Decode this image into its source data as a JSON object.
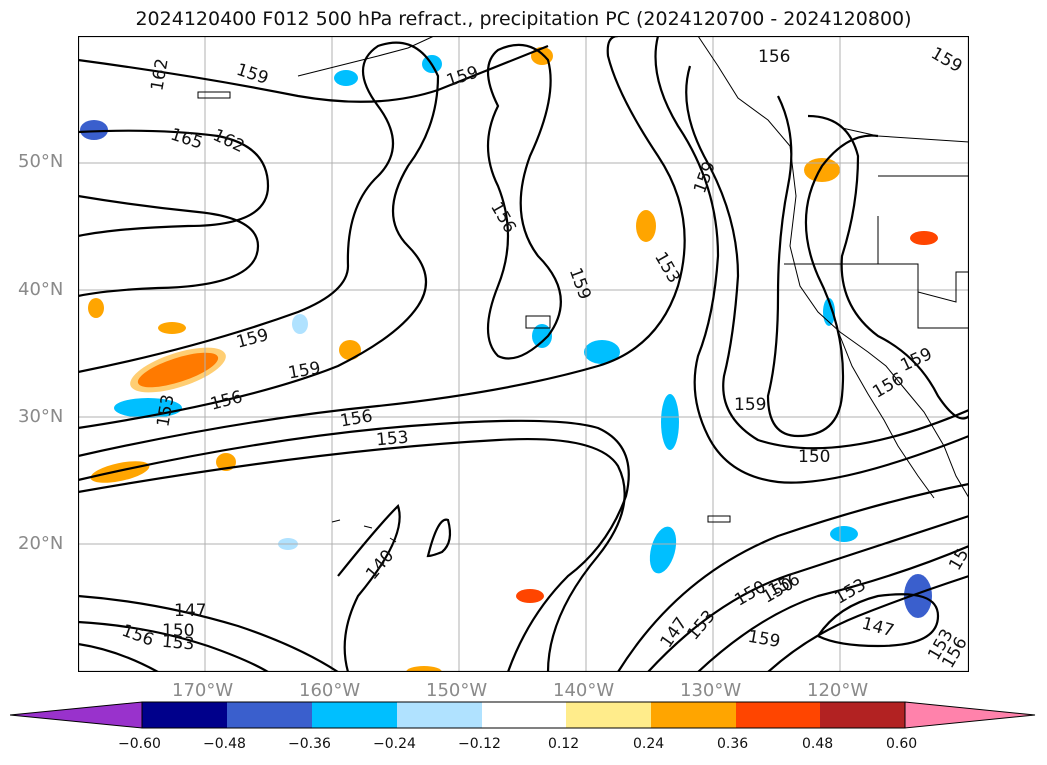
{
  "title": "2024120400 F012 500 hPa refract., precipitation PC (2024120700 - 2024120800)",
  "map": {
    "lat_ticks": [
      "50°N",
      "40°N",
      "30°N",
      "20°N"
    ],
    "lon_ticks": [
      "170°W",
      "160°W",
      "150°W",
      "140°W",
      "130°W",
      "120°W"
    ],
    "contour_labels": [
      "162",
      "159",
      "159",
      "156",
      "159",
      "165",
      "162",
      "156",
      "159",
      "153",
      "159",
      "159",
      "159",
      "156",
      "153",
      "156",
      "153",
      "150",
      "159",
      "159",
      "156",
      "150",
      "147",
      "150",
      "153",
      "156",
      "140",
      "147",
      "153",
      "150",
      "156",
      "153",
      "159",
      "147",
      "153",
      "156",
      "15"
    ]
  },
  "colorbar": {
    "ticks": [
      "−0.60",
      "−0.48",
      "−0.36",
      "−0.24",
      "−0.12",
      "0.12",
      "0.24",
      "0.36",
      "0.48",
      "0.60"
    ],
    "colors": [
      "#9932cc",
      "#00008b",
      "#3a5fcd",
      "#00bfff",
      "#b0e2ff",
      "#ffffff",
      "#ffec8b",
      "#ffa500",
      "#ff4500",
      "#b22222",
      "#ff82ab"
    ]
  }
}
